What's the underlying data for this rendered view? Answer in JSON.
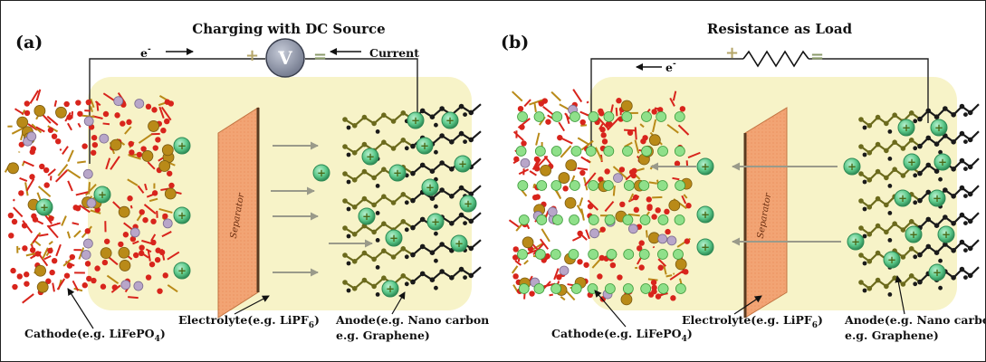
{
  "panel_a": {
    "label": "(a)",
    "title": "Charging with DC Source",
    "electron_label": "e",
    "electron_sup": "-",
    "voltmeter_symbol": "V",
    "plus_sign": "+",
    "minus_sign": "=",
    "current_label": "Current",
    "separator_label": "Separator",
    "cathode_label": "Cathode(e.g. LiFePO",
    "cathode_sub": "4",
    "cathode_close": ")",
    "electrolyte_label": "Electrolyte(e.g. LiPF",
    "electrolyte_sub": "6",
    "electrolyte_close": ")",
    "anode_line1": "Anode(e.g. Nano carbon",
    "anode_line2": "e.g. Graphene)"
  },
  "panel_b": {
    "label": "(b)",
    "title": "Resistance as Load",
    "electron_label": "e",
    "electron_sup": "-",
    "plus_sign": "+",
    "minus_sign": "=",
    "separator_label": "Separator",
    "cathode_label": "Cathode(e.g. LiFePO",
    "cathode_sub": "4",
    "cathode_close": ")",
    "electrolyte_label": "Electrolyte(e.g. LiPF",
    "electrolyte_sub": "6",
    "electrolyte_close": ")",
    "anode_line1": "Anode(e.g. Nano carbon",
    "anode_line2": "e.g. Graphene)"
  },
  "ion_symbol": "+",
  "colors": {
    "electrolyte_fill": "#f7f3c8",
    "separator": "#f2a474",
    "separator_edge": "#5a3a20",
    "ion": "#5cc98a",
    "ion_dark": "#2e8a55",
    "cathode_red": "#d8241c",
    "cathode_gold": "#b98a18",
    "cathode_lilac": "#b8a6c9",
    "anode_olive": "#6b6a1c",
    "anode_black": "#1a1a1a",
    "voltmeter": "#8e94a6",
    "plus_sign": "#b5a66a",
    "minus_sign": "#8a9a6a"
  }
}
